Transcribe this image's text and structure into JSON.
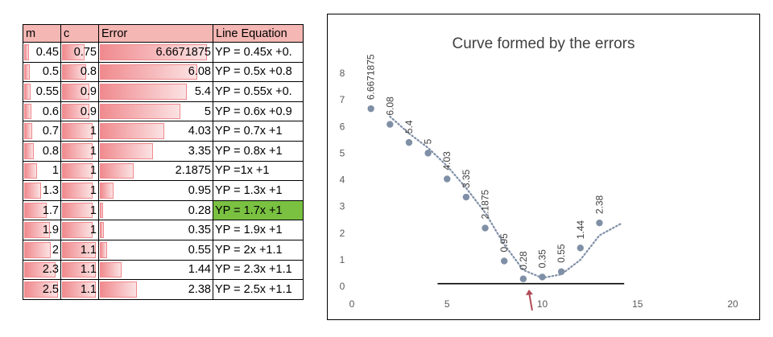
{
  "table": {
    "headers": [
      "m",
      "c",
      "Error",
      "Line Equation"
    ],
    "rows": [
      {
        "m": "0.45",
        "c": "0.75",
        "error": "6.6671875",
        "eq": "YP = 0.45x +0."
      },
      {
        "m": "0.5",
        "c": "0.8",
        "error": "6.08",
        "eq": "YP = 0.5x +0.8"
      },
      {
        "m": "0.55",
        "c": "0.9",
        "error": "5.4",
        "eq": "YP = 0.55x +0."
      },
      {
        "m": "0.6",
        "c": "0.9",
        "error": "5",
        "eq": "YP = 0.6x +0.9"
      },
      {
        "m": "0.7",
        "c": "1",
        "error": "4.03",
        "eq": "YP = 0.7x +1"
      },
      {
        "m": "0.8",
        "c": "1",
        "error": "3.35",
        "eq": "YP = 0.8x +1"
      },
      {
        "m": "1",
        "c": "1",
        "error": "2.1875",
        "eq": "YP =1x +1"
      },
      {
        "m": "1.3",
        "c": "1",
        "error": "0.95",
        "eq": "YP = 1.3x +1"
      },
      {
        "m": "1.7",
        "c": "1",
        "error": "0.28",
        "eq": "YP = 1.7x +1"
      },
      {
        "m": "1.9",
        "c": "1",
        "error": "0.35",
        "eq": "YP = 1.9x +1"
      },
      {
        "m": "2",
        "c": "1.1",
        "error": "0.55",
        "eq": "YP = 2x +1.1"
      },
      {
        "m": "2.3",
        "c": "1.1",
        "error": "1.44",
        "eq": "YP = 2.3x +1.1"
      },
      {
        "m": "2.5",
        "c": "1.1",
        "error": "2.38",
        "eq": "YP = 2.5x +1.1"
      }
    ],
    "highlight_row": 8,
    "highlight_color": "#7ac142",
    "header_color": "#f4b7b3",
    "bar_color": "#f08a8e"
  },
  "chart_data": {
    "type": "scatter",
    "title": "Curve formed by the errors",
    "xlabel": "",
    "ylabel": "",
    "xlim": [
      0,
      20
    ],
    "ylim": [
      0,
      8
    ],
    "x_ticks": [
      "0",
      "5",
      "10",
      "15",
      "20"
    ],
    "y_ticks": [
      "0",
      "1",
      "2",
      "3",
      "4",
      "5",
      "6",
      "7",
      "8"
    ],
    "series": [
      {
        "x": [
          1,
          2,
          3,
          4,
          5,
          6,
          7,
          8,
          9,
          10,
          11,
          12,
          13
        ],
        "values": [
          6.6671875,
          6.08,
          5.4,
          5,
          4.03,
          3.35,
          2.1875,
          0.95,
          0.28,
          0.35,
          0.55,
          1.44,
          2.38
        ],
        "labels": [
          "6.6671875",
          "6.08",
          "5.4",
          "5",
          "4.03",
          "3.35",
          "2.1875",
          "0.95",
          "0.28",
          "0.35",
          "0.55",
          "1.44",
          "2.38"
        ]
      }
    ],
    "trendline": {
      "style": "dotted",
      "type": "moving-average"
    },
    "baseline": {
      "x_from": 4.5,
      "x_to": 14.3,
      "y": 0.1
    },
    "marker_color": "#7f8fa6",
    "annotation": {
      "type": "arrow",
      "x": 9.3
    }
  }
}
